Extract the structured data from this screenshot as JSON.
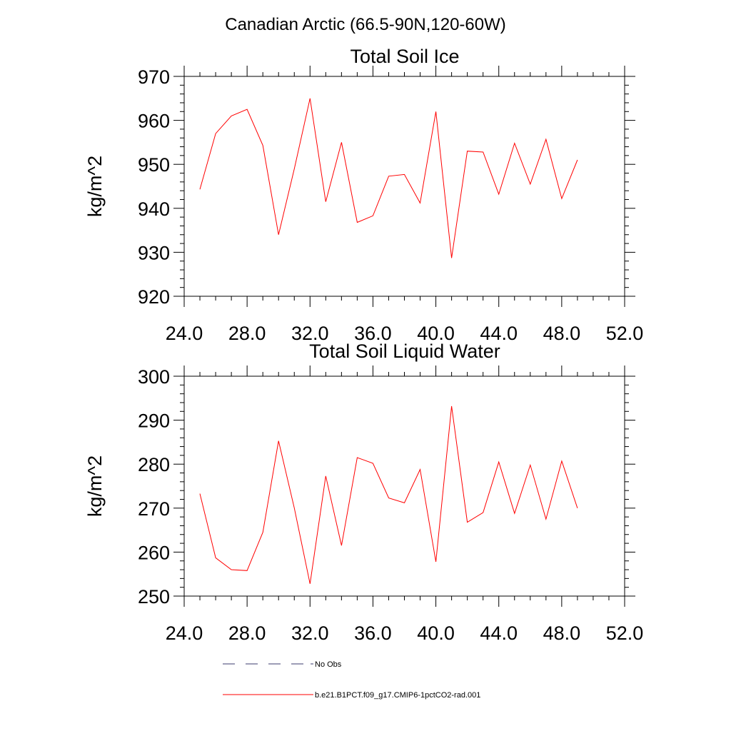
{
  "figure": {
    "title": "Canadian Arctic (66.5-90N,120-60W)"
  },
  "chart_data": [
    {
      "type": "line",
      "title": "Total Soil Ice",
      "xlabel": "",
      "ylabel": "kg/m^2",
      "xlim": [
        24,
        52
      ],
      "ylim": [
        920,
        970
      ],
      "x_ticks": [
        24,
        28,
        32,
        36,
        40,
        44,
        48,
        52
      ],
      "x_tick_labels": [
        "24.0",
        "28.0",
        "32.0",
        "36.0",
        "40.0",
        "44.0",
        "48.0",
        "52.0"
      ],
      "y_ticks": [
        920,
        930,
        940,
        950,
        960,
        970
      ],
      "y_tick_labels": [
        "920",
        "930",
        "940",
        "950",
        "960",
        "970"
      ],
      "grid": false,
      "series": [
        {
          "color": "#ff0000",
          "x": [
            25,
            26,
            27,
            28,
            29,
            30,
            31,
            32,
            33,
            34,
            35,
            36,
            37,
            38,
            39,
            40,
            41,
            42,
            43,
            44,
            45,
            46,
            47,
            48,
            49
          ],
          "values": [
            944.3,
            957.0,
            961.0,
            962.5,
            954.3,
            934.0,
            949.0,
            965.0,
            941.5,
            955.0,
            936.8,
            938.3,
            947.3,
            947.7,
            941.2,
            962.0,
            928.7,
            953.0,
            952.8,
            943.2,
            954.8,
            945.5,
            955.7,
            942.2,
            951.0
          ]
        }
      ]
    },
    {
      "type": "line",
      "title": "Total Soil Liquid Water",
      "xlabel": "",
      "ylabel": "kg/m^2",
      "xlim": [
        24,
        52
      ],
      "ylim": [
        250,
        300
      ],
      "x_ticks": [
        24,
        28,
        32,
        36,
        40,
        44,
        48,
        52
      ],
      "x_tick_labels": [
        "24.0",
        "28.0",
        "32.0",
        "36.0",
        "40.0",
        "44.0",
        "48.0",
        "52.0"
      ],
      "y_ticks": [
        250,
        260,
        270,
        280,
        290,
        300
      ],
      "y_tick_labels": [
        "250",
        "260",
        "270",
        "280",
        "290",
        "300"
      ],
      "grid": false,
      "series": [
        {
          "color": "#ff0000",
          "x": [
            25,
            26,
            27,
            28,
            29,
            30,
            31,
            32,
            33,
            34,
            35,
            36,
            37,
            38,
            39,
            40,
            41,
            42,
            43,
            44,
            45,
            46,
            47,
            48,
            49
          ],
          "values": [
            273.3,
            258.7,
            256.0,
            255.8,
            264.5,
            285.3,
            270.0,
            252.8,
            277.3,
            261.5,
            281.5,
            280.2,
            272.3,
            271.2,
            278.8,
            257.8,
            293.2,
            266.8,
            269.0,
            280.5,
            268.8,
            279.8,
            267.5,
            280.7,
            270.0
          ]
        }
      ]
    }
  ],
  "legend": {
    "items": [
      {
        "label": "No Obs",
        "style": "dashed",
        "color": "#3b3b6e"
      },
      {
        "label": "b.e21.B1PCT.f09_g17.CMIP6-1pctCO2-rad.001",
        "style": "solid",
        "color": "#ff0000"
      }
    ]
  }
}
